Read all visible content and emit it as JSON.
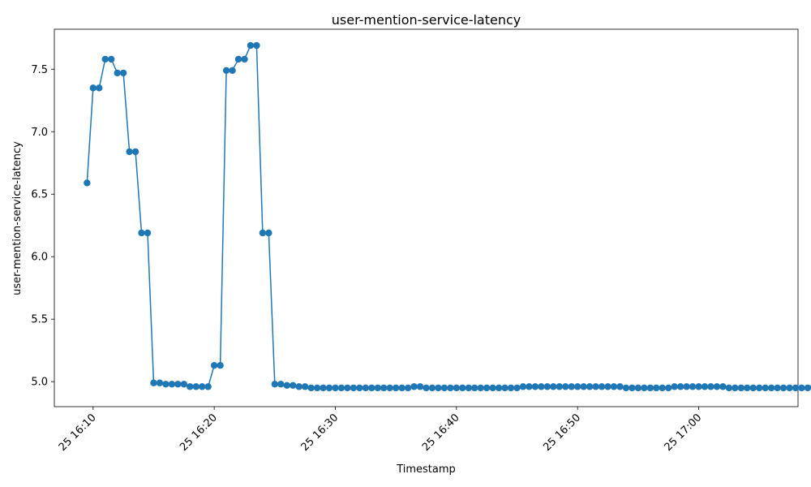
{
  "chart_data": {
    "type": "line",
    "title": "user-mention-service-latency",
    "xlabel": "Timestamp",
    "ylabel": "user-mention-service-latency",
    "x_tick_labels": [
      "25 16:10",
      "25 16:20",
      "25 16:30",
      "25 16:40",
      "25 16:50",
      "25 17:00"
    ],
    "y_tick_labels": [
      "5.0",
      "5.5",
      "6.0",
      "6.5",
      "7.0",
      "7.5"
    ],
    "ylim": [
      4.8,
      7.82
    ],
    "xlim": [
      "25 16:06:48",
      "25 17:08:12"
    ],
    "grid": false,
    "markers": true,
    "series_color": "#1f77b4",
    "series": [
      {
        "x_start": "25 16:09:30",
        "x_step_seconds": 30,
        "values": [
          6.59,
          7.35,
          7.35,
          7.58,
          7.58,
          7.47,
          7.47,
          6.84,
          6.84,
          6.19,
          6.19,
          4.99,
          4.99,
          4.98,
          4.98,
          4.98,
          4.98,
          4.96,
          4.96,
          4.96,
          4.96,
          5.13,
          5.13,
          7.49,
          7.49,
          7.58,
          7.58,
          7.69,
          7.69,
          6.19,
          6.19,
          4.98,
          4.98,
          4.97,
          4.97,
          4.96,
          4.96,
          4.95,
          4.95,
          4.95,
          4.95,
          4.95,
          4.95,
          4.95,
          4.95,
          4.95,
          4.95,
          4.95,
          4.95,
          4.95,
          4.95,
          4.95,
          4.95,
          4.95,
          4.96,
          4.96,
          4.95,
          4.95,
          4.95,
          4.95,
          4.95,
          4.95,
          4.95,
          4.95,
          4.95,
          4.95,
          4.95,
          4.95,
          4.95,
          4.95,
          4.95,
          4.95,
          4.96,
          4.96,
          4.96,
          4.96,
          4.96,
          4.96,
          4.96,
          4.96,
          4.96,
          4.96,
          4.96,
          4.96,
          4.96,
          4.96,
          4.96,
          4.96,
          4.96,
          4.95,
          4.95,
          4.95,
          4.95,
          4.95,
          4.95,
          4.95,
          4.95,
          4.96,
          4.96,
          4.96,
          4.96,
          4.96,
          4.96,
          4.96,
          4.96,
          4.96,
          4.95,
          4.95,
          4.95,
          4.95,
          4.95,
          4.95,
          4.95,
          4.95,
          4.95,
          4.95,
          4.95,
          4.95,
          4.95,
          4.95,
          4.96,
          4.96,
          4.95,
          4.95,
          4.95,
          4.95
        ]
      }
    ]
  }
}
